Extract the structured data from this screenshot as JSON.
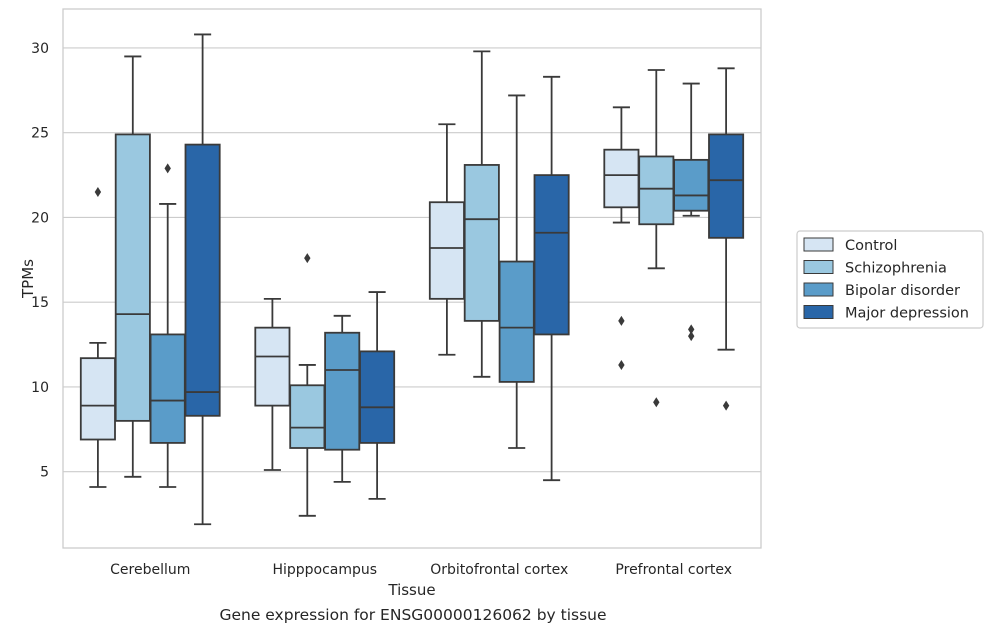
{
  "caption": "Gene expression for ENSG00000126062 by tissue",
  "chart_data": {
    "type": "box",
    "xlabel": "Tissue",
    "ylabel": "TPMs",
    "ylim": [
      0.5,
      32.3
    ],
    "yticks": [
      5,
      10,
      15,
      20,
      25,
      30
    ],
    "grid": true,
    "legend_position": "right",
    "categories": [
      "Cerebellum",
      "Hipppocampus",
      "Orbitofrontal cortex",
      "Prefrontal cortex"
    ],
    "series": [
      {
        "name": "Control",
        "color": "#d6e5f3",
        "boxes": [
          {
            "whislo": 4.1,
            "q1": 6.9,
            "med": 8.9,
            "q3": 11.7,
            "whishi": 12.6,
            "fliers": [
              21.5
            ]
          },
          {
            "whislo": 5.1,
            "q1": 8.9,
            "med": 11.8,
            "q3": 13.5,
            "whishi": 15.2,
            "fliers": []
          },
          {
            "whislo": 11.9,
            "q1": 15.2,
            "med": 18.2,
            "q3": 20.9,
            "whishi": 25.5,
            "fliers": []
          },
          {
            "whislo": 19.7,
            "q1": 20.6,
            "med": 22.5,
            "q3": 24.0,
            "whishi": 26.5,
            "fliers": [
              13.9,
              11.3
            ]
          }
        ]
      },
      {
        "name": "Schizophrenia",
        "color": "#9ac8e0",
        "boxes": [
          {
            "whislo": 4.7,
            "q1": 8.0,
            "med": 14.3,
            "q3": 24.9,
            "whishi": 29.5,
            "fliers": []
          },
          {
            "whislo": 2.4,
            "q1": 6.4,
            "med": 7.6,
            "q3": 10.1,
            "whishi": 11.3,
            "fliers": [
              17.6
            ]
          },
          {
            "whislo": 10.6,
            "q1": 13.9,
            "med": 19.9,
            "q3": 23.1,
            "whishi": 29.8,
            "fliers": []
          },
          {
            "whislo": 17.0,
            "q1": 19.6,
            "med": 21.7,
            "q3": 23.6,
            "whishi": 28.7,
            "fliers": [
              9.1
            ]
          }
        ]
      },
      {
        "name": "Bipolar disorder",
        "color": "#5a9cc9",
        "boxes": [
          {
            "whislo": 4.1,
            "q1": 6.7,
            "med": 9.2,
            "q3": 13.1,
            "whishi": 20.8,
            "fliers": [
              22.9
            ]
          },
          {
            "whislo": 4.4,
            "q1": 6.3,
            "med": 11.0,
            "q3": 13.2,
            "whishi": 14.2,
            "fliers": []
          },
          {
            "whislo": 6.4,
            "q1": 10.3,
            "med": 13.5,
            "q3": 17.4,
            "whishi": 27.2,
            "fliers": []
          },
          {
            "whislo": 20.1,
            "q1": 20.4,
            "med": 21.3,
            "q3": 23.4,
            "whishi": 27.9,
            "fliers": [
              13.4,
              13.0
            ]
          }
        ]
      },
      {
        "name": "Major depression",
        "color": "#2966a8",
        "boxes": [
          {
            "whislo": 1.9,
            "q1": 8.3,
            "med": 9.7,
            "q3": 24.3,
            "whishi": 30.8,
            "fliers": []
          },
          {
            "whislo": 3.4,
            "q1": 6.7,
            "med": 8.8,
            "q3": 12.1,
            "whishi": 15.6,
            "fliers": []
          },
          {
            "whislo": 4.5,
            "q1": 13.1,
            "med": 19.1,
            "q3": 22.5,
            "whishi": 28.3,
            "fliers": []
          },
          {
            "whislo": 12.2,
            "q1": 18.8,
            "med": 22.2,
            "q3": 24.9,
            "whishi": 28.8,
            "fliers": [
              8.9
            ]
          }
        ]
      }
    ]
  }
}
